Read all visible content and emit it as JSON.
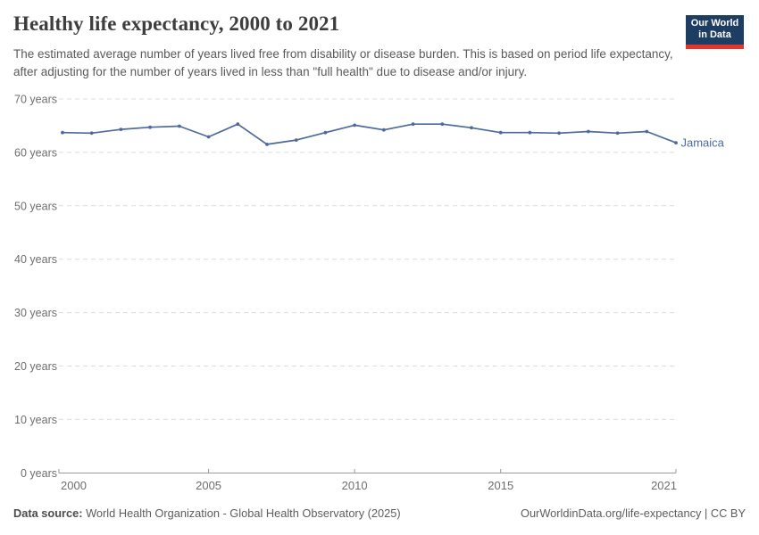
{
  "header": {
    "title": "Healthy life expectancy, 2000 to 2021",
    "subtitle": "The estimated average number of years lived free from disability or disease burden. This is based on period life expectancy, after adjusting for the number of years lived in less than \"full health\" due to disease and/or injury.",
    "logo": {
      "line1": "Our World",
      "line2": "in Data",
      "bg_color": "#1d3d63",
      "accent_color": "#e0362c"
    }
  },
  "chart_data": {
    "type": "line",
    "title": "Healthy life expectancy, 2000 to 2021",
    "x": [
      2000,
      2001,
      2002,
      2003,
      2004,
      2005,
      2006,
      2007,
      2008,
      2009,
      2010,
      2011,
      2012,
      2013,
      2014,
      2015,
      2016,
      2017,
      2018,
      2019,
      2020,
      2021
    ],
    "series": [
      {
        "name": "Jamaica",
        "color": "#4C6A9C",
        "values": [
          63.7,
          63.6,
          64.3,
          64.7,
          64.9,
          62.9,
          65.3,
          61.5,
          62.3,
          63.7,
          65.1,
          64.2,
          65.3,
          65.3,
          64.6,
          63.7,
          63.7,
          63.6,
          63.9,
          63.6,
          63.9,
          61.8
        ]
      }
    ],
    "xlabel": "",
    "ylabel": "",
    "xlim": [
      2000,
      2021
    ],
    "ylim": [
      0,
      70
    ],
    "yticks": [
      {
        "value": 0,
        "label": "0 years"
      },
      {
        "value": 10,
        "label": "10 years"
      },
      {
        "value": 20,
        "label": "20 years"
      },
      {
        "value": 30,
        "label": "30 years"
      },
      {
        "value": 40,
        "label": "40 years"
      },
      {
        "value": 50,
        "label": "50 years"
      },
      {
        "value": 60,
        "label": "60 years"
      },
      {
        "value": 70,
        "label": "70 years"
      }
    ],
    "xticks": [
      {
        "value": 2000,
        "label": "2000"
      },
      {
        "value": 2005,
        "label": "2005"
      },
      {
        "value": 2010,
        "label": "2010"
      },
      {
        "value": 2015,
        "label": "2015"
      },
      {
        "value": 2021,
        "label": "2021"
      }
    ],
    "grid": {
      "horizontal": true,
      "style": "dashed",
      "color": "#dcdcdc"
    },
    "axis_color": "#9a9a9a",
    "tick_label_color": "#6e6e6e",
    "legend_position": "end-of-line"
  },
  "footer": {
    "source_label": "Data source:",
    "source_text": " World Health Organization - Global Health Observatory (2025)",
    "credit": "OurWorldinData.org/life-expectancy | CC BY"
  }
}
